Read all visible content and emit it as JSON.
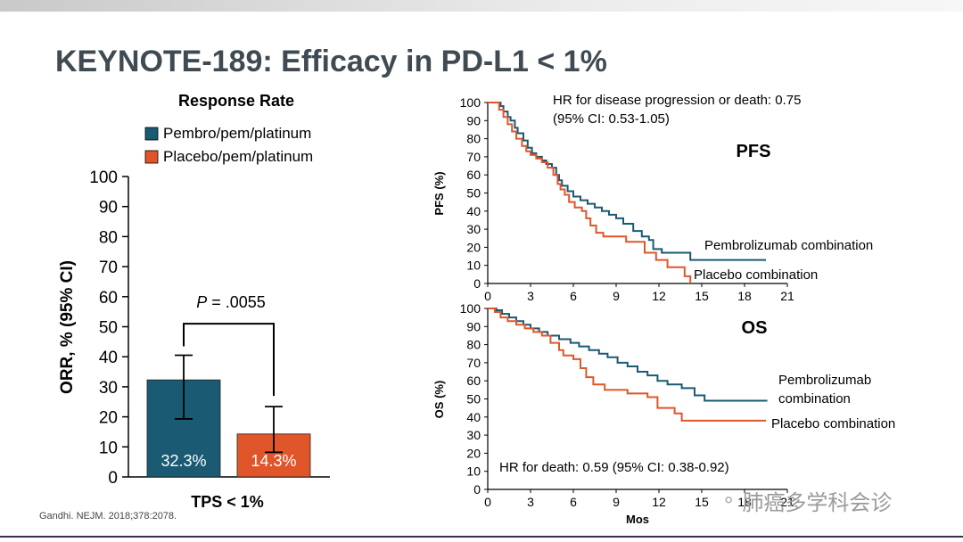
{
  "slide": {
    "title": "KEYNOTE-189: Efficacy in PD-L1 < 1%",
    "citation": "Gandhi. NEJM. 2018;378:2078.",
    "watermark": "肺癌多学科会诊",
    "watermark_icon": "wechat-icon"
  },
  "colors": {
    "pembro": "#1a5a72",
    "placebo": "#e0562a",
    "axis": "#000000"
  },
  "chart_data": [
    {
      "type": "bar",
      "title": "Response Rate",
      "xlabel": "TPS < 1%",
      "ylabel": "ORR, % (95% CI)",
      "ylim": [
        0,
        100
      ],
      "yticks": [
        "0",
        "10",
        "20",
        "30",
        "40",
        "50",
        "60",
        "70",
        "80",
        "90",
        "100"
      ],
      "legend": [
        "Pembro/pem/platinum",
        "Placebo/pem/platinum"
      ],
      "series": [
        {
          "name": "Pembro/pem/platinum",
          "value": 32.3,
          "label": "32.3%",
          "ci": [
            19.3,
            40.5
          ]
        },
        {
          "name": "Placebo/pem/platinum",
          "value": 14.3,
          "label": "14.3%",
          "ci": [
            8.2,
            23.4
          ]
        }
      ],
      "annotation": {
        "p_prefix": "P",
        "p_value": " = .0055",
        "bracket_ylevel": 51
      }
    },
    {
      "type": "line",
      "title": "PFS",
      "ylabel": "PFS (%)",
      "xlim": [
        0,
        21
      ],
      "ylim": [
        0,
        100
      ],
      "xticks": [
        "0",
        "3",
        "6",
        "9",
        "12",
        "15",
        "18",
        "21"
      ],
      "yticks": [
        "0",
        "10",
        "20",
        "30",
        "40",
        "50",
        "60",
        "70",
        "80",
        "90",
        "100"
      ],
      "annotation": [
        "HR for disease progression or death: 0.75",
        "(95% CI: 0.53-1.05)"
      ],
      "series": [
        {
          "name": "Pembrolizumab combination",
          "x": [
            0,
            0.9,
            1.1,
            1.4,
            1.6,
            1.9,
            2.1,
            2.5,
            2.8,
            3.1,
            3.4,
            3.8,
            4.1,
            4.5,
            4.8,
            5.0,
            5.2,
            5.6,
            6.0,
            6.5,
            7.0,
            7.5,
            8.0,
            8.5,
            9.0,
            9.5,
            10.2,
            10.8,
            11.3,
            11.6,
            12.2,
            14.2,
            15.1,
            19.5
          ],
          "y": [
            100,
            98,
            95,
            92,
            90,
            86,
            83,
            79,
            75,
            72,
            70,
            68,
            66,
            64,
            60,
            57,
            54,
            51,
            48,
            46,
            44,
            42,
            40,
            38,
            36,
            33,
            29,
            26,
            24,
            19,
            17,
            13,
            13,
            13
          ]
        },
        {
          "name": "Placebo combination",
          "x": [
            0,
            0.8,
            1.1,
            1.4,
            1.7,
            2.0,
            2.4,
            2.7,
            3.0,
            3.4,
            3.8,
            4.2,
            4.6,
            4.9,
            5.1,
            5.4,
            5.7,
            6.1,
            6.6,
            6.9,
            7.2,
            7.6,
            8.1,
            9.7,
            11.0,
            11.8,
            12.6,
            13.8,
            14.2
          ],
          "y": [
            100,
            96,
            92,
            88,
            84,
            80,
            76,
            73,
            71,
            69,
            67,
            64,
            60,
            55,
            52,
            49,
            45,
            42,
            40,
            36,
            32,
            28,
            26,
            23,
            17,
            13,
            9,
            4,
            0
          ]
        }
      ],
      "end_labels": [
        "Pembrolizumab combination",
        "Placebo combination"
      ]
    },
    {
      "type": "line",
      "title": "OS",
      "ylabel": "OS (%)",
      "xlabel": "Mos",
      "xlim": [
        0,
        21
      ],
      "ylim": [
        0,
        100
      ],
      "xticks": [
        "0",
        "3",
        "6",
        "9",
        "12",
        "15",
        "18",
        "21"
      ],
      "yticks": [
        "0",
        "10",
        "20",
        "30",
        "40",
        "50",
        "60",
        "70",
        "80",
        "90",
        "100"
      ],
      "annotation": [
        "HR for death: 0.59 (95% CI: 0.38-0.92)"
      ],
      "series": [
        {
          "name": "Pembrolizumab combination",
          "x": [
            0,
            0.6,
            1.0,
            1.5,
            2.0,
            2.5,
            3.0,
            3.6,
            4.2,
            5.0,
            5.8,
            6.4,
            7.1,
            7.8,
            8.4,
            9.1,
            9.8,
            10.5,
            11.2,
            11.9,
            12.6,
            13.6,
            14.5,
            15.2,
            15.6,
            18.0,
            19.6
          ],
          "y": [
            100,
            99,
            97,
            95,
            93,
            91,
            89,
            87,
            85,
            83,
            81,
            79,
            77,
            75,
            73,
            70,
            68,
            65,
            63,
            60,
            58,
            56,
            52,
            49,
            49,
            49,
            49
          ]
        },
        {
          "name": "Placebo combination",
          "x": [
            0,
            0.5,
            0.9,
            1.4,
            2.0,
            2.6,
            3.2,
            3.8,
            4.4,
            5.0,
            5.3,
            6.0,
            6.5,
            6.9,
            7.4,
            8.2,
            9.8,
            11.2,
            11.9,
            13.1,
            13.6,
            15.0,
            19.5
          ],
          "y": [
            100,
            98,
            95,
            93,
            91,
            89,
            87,
            85,
            81,
            77,
            74,
            72,
            67,
            62,
            58,
            55,
            53,
            51,
            45,
            42,
            38,
            38,
            38
          ]
        }
      ],
      "end_labels": [
        "Pembrolizumab",
        "combination",
        "Placebo combination"
      ]
    }
  ]
}
